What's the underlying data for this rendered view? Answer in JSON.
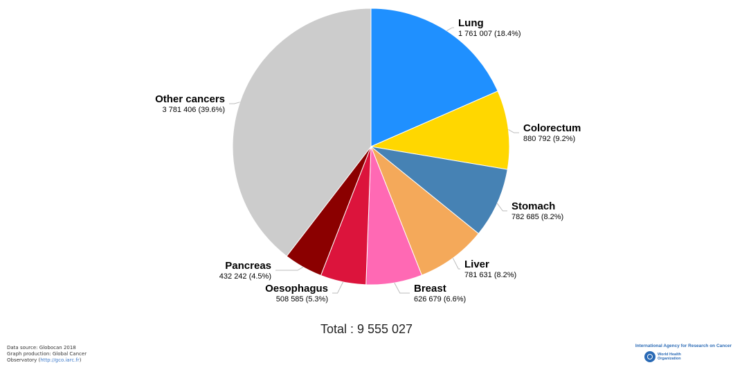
{
  "chart_data": {
    "type": "pie",
    "title": "",
    "slices": [
      {
        "name": "Lung",
        "value": 1761007,
        "value_label": "1 761 007 (18.4%)",
        "color": "#1f90ff"
      },
      {
        "name": "Colorectum",
        "value": 880792,
        "value_label": "880 792 (9.2%)",
        "color": "#ffd700"
      },
      {
        "name": "Stomach",
        "value": 782685,
        "value_label": "782 685 (8.2%)",
        "color": "#4682b4"
      },
      {
        "name": "Liver",
        "value": 781631,
        "value_label": "781 631 (8.2%)",
        "color": "#f4a95a"
      },
      {
        "name": "Breast",
        "value": 626679,
        "value_label": "626 679 (6.6%)",
        "color": "#ff69b4"
      },
      {
        "name": "Oesophagus",
        "value": 508585,
        "value_label": "508 585 (5.3%)",
        "color": "#dc143c"
      },
      {
        "name": "Pancreas",
        "value": 432242,
        "value_label": "432 242 (4.5%)",
        "color": "#8b0000"
      },
      {
        "name": "Other cancers",
        "value": 3781406,
        "value_label": "3 781 406 (39.6%)",
        "color": "#cccccc"
      }
    ],
    "total_label": "Total : 9 555 027"
  },
  "footer": {
    "source_line1": "Data source: Globocan 2018",
    "source_line2": "Graph production: Global Cancer",
    "source_line3_prefix": "Observatory (",
    "source_link": "http://gco.iarc.fr",
    "source_line3_suffix": ")",
    "agency": "International Agency for Research on Cancer",
    "who_line1": "World Health",
    "who_line2": "Organization"
  }
}
